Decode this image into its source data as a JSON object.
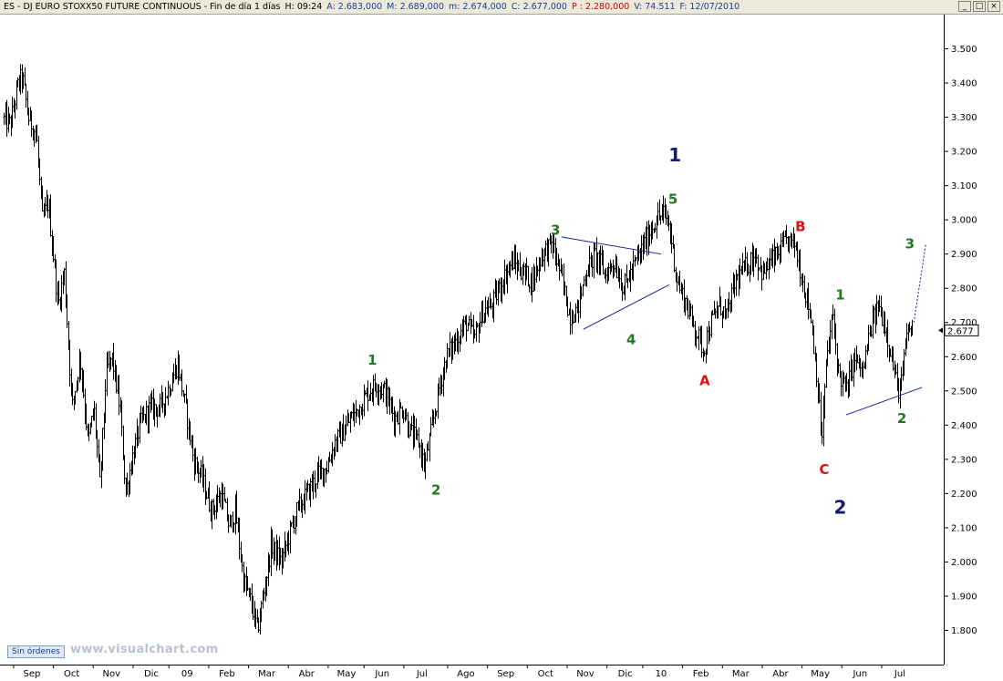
{
  "window": {
    "title_parts": [
      {
        "text": "ES - DJ EURO STOXX50 FUTURE CONTINUOUS - Fin de día 1 días",
        "color": "#000000"
      },
      {
        "text": "H: 09:24",
        "color": "#000000"
      },
      {
        "text": "A: 2.683,000",
        "color": "#1a3d9a"
      },
      {
        "text": "M: 2.689,000",
        "color": "#1a3d9a"
      },
      {
        "text": "m: 2.674,000",
        "color": "#1a3d9a"
      },
      {
        "text": "C: 2.677,000",
        "color": "#1a3d9a"
      },
      {
        "text": "P : 2.280,000",
        "color": "#cc0000"
      },
      {
        "text": "V: 74.511",
        "color": "#1a3d9a"
      },
      {
        "text": "F: 12/07/2010",
        "color": "#1a3d9a"
      }
    ],
    "controls": {
      "minimize": "_",
      "maximize": "□",
      "close": "×"
    }
  },
  "status": {
    "orders_button": "Sin órdenes",
    "watermark": "www.visualchart.com"
  },
  "chart_data": {
    "type": "line",
    "style": "ohlc-bars",
    "ylim": [
      1.7,
      3.6
    ],
    "yticks": [
      {
        "v": 1.8,
        "label": "1.800"
      },
      {
        "v": 1.9,
        "label": "1.900"
      },
      {
        "v": 2.0,
        "label": "2.000"
      },
      {
        "v": 2.1,
        "label": "2.100"
      },
      {
        "v": 2.2,
        "label": "2.200"
      },
      {
        "v": 2.3,
        "label": "2.300"
      },
      {
        "v": 2.4,
        "label": "2.400"
      },
      {
        "v": 2.5,
        "label": "2.500"
      },
      {
        "v": 2.6,
        "label": "2.600"
      },
      {
        "v": 2.7,
        "label": "2.700"
      },
      {
        "v": 2.8,
        "label": "2.800"
      },
      {
        "v": 2.9,
        "label": "2.900"
      },
      {
        "v": 3.0,
        "label": "3.000"
      },
      {
        "v": 3.1,
        "label": "3.100"
      },
      {
        "v": 3.2,
        "label": "3.200"
      },
      {
        "v": 3.3,
        "label": "3.300"
      },
      {
        "v": 3.4,
        "label": "3.400"
      },
      {
        "v": 3.5,
        "label": "3.500"
      }
    ],
    "xlim": [
      0,
      23.7
    ],
    "xticks": [
      {
        "t": 0.8,
        "label": "Sep"
      },
      {
        "t": 1.8,
        "label": "Oct"
      },
      {
        "t": 2.8,
        "label": "Nov"
      },
      {
        "t": 3.8,
        "label": "Dic"
      },
      {
        "t": 4.7,
        "label": "09"
      },
      {
        "t": 5.7,
        "label": "Feb"
      },
      {
        "t": 6.7,
        "label": "Mar"
      },
      {
        "t": 7.7,
        "label": "Abr"
      },
      {
        "t": 8.7,
        "label": "May"
      },
      {
        "t": 9.6,
        "label": "Jun"
      },
      {
        "t": 10.6,
        "label": "Jul"
      },
      {
        "t": 11.7,
        "label": "Ago"
      },
      {
        "t": 12.7,
        "label": "Sep"
      },
      {
        "t": 13.7,
        "label": "Oct"
      },
      {
        "t": 14.7,
        "label": "Nov"
      },
      {
        "t": 15.7,
        "label": "Dic"
      },
      {
        "t": 16.6,
        "label": "10"
      },
      {
        "t": 17.6,
        "label": "Feb"
      },
      {
        "t": 18.6,
        "label": "Mar"
      },
      {
        "t": 19.6,
        "label": "Abr"
      },
      {
        "t": 20.6,
        "label": "May"
      },
      {
        "t": 21.6,
        "label": "Jun"
      },
      {
        "t": 22.6,
        "label": "Jul"
      }
    ],
    "price_path": [
      [
        0.0,
        3.3
      ],
      [
        0.25,
        3.28
      ],
      [
        0.45,
        3.4
      ],
      [
        0.55,
        3.42
      ],
      [
        0.7,
        3.3
      ],
      [
        0.9,
        3.25
      ],
      [
        1.05,
        3.0
      ],
      [
        1.2,
        3.05
      ],
      [
        1.45,
        2.75
      ],
      [
        1.6,
        2.85
      ],
      [
        1.8,
        2.45
      ],
      [
        2.0,
        2.6
      ],
      [
        2.2,
        2.35
      ],
      [
        2.35,
        2.45
      ],
      [
        2.5,
        2.22
      ],
      [
        2.65,
        2.55
      ],
      [
        2.8,
        2.6
      ],
      [
        3.0,
        2.45
      ],
      [
        3.15,
        2.2
      ],
      [
        3.3,
        2.3
      ],
      [
        3.5,
        2.4
      ],
      [
        3.75,
        2.45
      ],
      [
        4.0,
        2.45
      ],
      [
        4.2,
        2.5
      ],
      [
        4.45,
        2.58
      ],
      [
        4.65,
        2.45
      ],
      [
        4.85,
        2.3
      ],
      [
        5.05,
        2.25
      ],
      [
        5.3,
        2.15
      ],
      [
        5.55,
        2.2
      ],
      [
        5.75,
        2.1
      ],
      [
        5.9,
        2.15
      ],
      [
        6.1,
        1.95
      ],
      [
        6.3,
        1.88
      ],
      [
        6.45,
        1.8
      ],
      [
        6.6,
        1.9
      ],
      [
        6.8,
        2.05
      ],
      [
        7.05,
        2.0
      ],
      [
        7.25,
        2.08
      ],
      [
        7.45,
        2.15
      ],
      [
        7.7,
        2.2
      ],
      [
        7.95,
        2.25
      ],
      [
        8.2,
        2.28
      ],
      [
        8.4,
        2.35
      ],
      [
        8.6,
        2.38
      ],
      [
        8.8,
        2.42
      ],
      [
        9.0,
        2.45
      ],
      [
        9.25,
        2.5
      ],
      [
        9.45,
        2.52
      ],
      [
        9.65,
        2.5
      ],
      [
        9.9,
        2.42
      ],
      [
        10.1,
        2.45
      ],
      [
        10.3,
        2.38
      ],
      [
        10.5,
        2.35
      ],
      [
        10.65,
        2.28
      ],
      [
        10.85,
        2.4
      ],
      [
        11.0,
        2.5
      ],
      [
        11.2,
        2.6
      ],
      [
        11.45,
        2.65
      ],
      [
        11.7,
        2.7
      ],
      [
        11.9,
        2.65
      ],
      [
        12.1,
        2.73
      ],
      [
        12.35,
        2.75
      ],
      [
        12.6,
        2.82
      ],
      [
        12.85,
        2.88
      ],
      [
        13.1,
        2.85
      ],
      [
        13.35,
        2.82
      ],
      [
        13.6,
        2.9
      ],
      [
        13.85,
        2.93
      ],
      [
        14.05,
        2.85
      ],
      [
        14.3,
        2.72
      ],
      [
        14.5,
        2.74
      ],
      [
        14.7,
        2.85
      ],
      [
        14.95,
        2.9
      ],
      [
        15.2,
        2.84
      ],
      [
        15.4,
        2.88
      ],
      [
        15.65,
        2.8
      ],
      [
        15.85,
        2.85
      ],
      [
        16.05,
        2.9
      ],
      [
        16.25,
        2.95
      ],
      [
        16.45,
        3.0
      ],
      [
        16.65,
        3.02
      ],
      [
        16.8,
        2.98
      ],
      [
        17.0,
        2.82
      ],
      [
        17.2,
        2.76
      ],
      [
        17.45,
        2.68
      ],
      [
        17.65,
        2.62
      ],
      [
        17.85,
        2.7
      ],
      [
        18.05,
        2.75
      ],
      [
        18.25,
        2.72
      ],
      [
        18.45,
        2.82
      ],
      [
        18.7,
        2.86
      ],
      [
        18.95,
        2.9
      ],
      [
        19.15,
        2.84
      ],
      [
        19.35,
        2.88
      ],
      [
        19.55,
        2.9
      ],
      [
        19.75,
        2.94
      ],
      [
        19.95,
        2.93
      ],
      [
        20.15,
        2.82
      ],
      [
        20.35,
        2.72
      ],
      [
        20.5,
        2.55
      ],
      [
        20.62,
        2.35
      ],
      [
        20.75,
        2.6
      ],
      [
        20.9,
        2.72
      ],
      [
        21.05,
        2.55
      ],
      [
        21.25,
        2.5
      ],
      [
        21.45,
        2.6
      ],
      [
        21.65,
        2.55
      ],
      [
        21.85,
        2.68
      ],
      [
        22.05,
        2.75
      ],
      [
        22.2,
        2.7
      ],
      [
        22.35,
        2.62
      ],
      [
        22.5,
        2.52
      ],
      [
        22.6,
        2.5
      ],
      [
        22.72,
        2.62
      ],
      [
        22.82,
        2.69
      ],
      [
        22.9,
        2.677
      ]
    ],
    "last_price": {
      "v": 2.677,
      "label": "2.677"
    },
    "trendlines": [
      {
        "from": [
          14.1,
          2.95
        ],
        "to": [
          16.6,
          2.9
        ],
        "style": "solid"
      },
      {
        "from": [
          14.65,
          2.68
        ],
        "to": [
          16.8,
          2.81
        ],
        "style": "solid"
      },
      {
        "from": [
          21.25,
          2.43
        ],
        "to": [
          23.15,
          2.51
        ],
        "style": "solid"
      },
      {
        "from": [
          22.95,
          2.7
        ],
        "to": [
          23.25,
          2.93
        ],
        "style": "dotted"
      }
    ],
    "wave_labels": [
      {
        "text": "1",
        "t": 9.35,
        "v": 2.59,
        "color": "#1f7a1f",
        "size": "small"
      },
      {
        "text": "2",
        "t": 10.95,
        "v": 2.21,
        "color": "#1f7a1f",
        "size": "small"
      },
      {
        "text": "3",
        "t": 13.95,
        "v": 2.97,
        "color": "#1f7a1f",
        "size": "small"
      },
      {
        "text": "4",
        "t": 15.85,
        "v": 2.65,
        "color": "#1f7a1f",
        "size": "small"
      },
      {
        "text": "5",
        "t": 16.9,
        "v": 3.06,
        "color": "#1f7a1f",
        "size": "small"
      },
      {
        "text": "1",
        "t": 16.95,
        "v": 3.19,
        "color": "#1a1a6e",
        "size": "large"
      },
      {
        "text": "A",
        "t": 17.7,
        "v": 2.53,
        "color": "#dd1111",
        "size": "small"
      },
      {
        "text": "B",
        "t": 20.1,
        "v": 2.98,
        "color": "#dd1111",
        "size": "small"
      },
      {
        "text": "C",
        "t": 20.7,
        "v": 2.27,
        "color": "#dd1111",
        "size": "small"
      },
      {
        "text": "2",
        "t": 21.1,
        "v": 2.16,
        "color": "#1a1a6e",
        "size": "large"
      },
      {
        "text": "1",
        "t": 21.1,
        "v": 2.78,
        "color": "#1f7a1f",
        "size": "small"
      },
      {
        "text": "2",
        "t": 22.65,
        "v": 2.42,
        "color": "#1f7a1f",
        "size": "small"
      },
      {
        "text": "3",
        "t": 22.85,
        "v": 2.93,
        "color": "#1f7a1f",
        "size": "small"
      }
    ],
    "colors": {
      "bars": "#000000",
      "trendline": "#1a1a9a",
      "axis": "#000000"
    }
  }
}
